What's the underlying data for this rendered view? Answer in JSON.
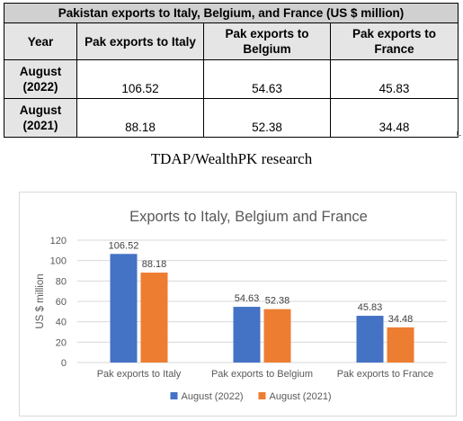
{
  "table": {
    "title": "Pakistan exports to Italy, Belgium, and France (US $ million)",
    "headers": [
      "Year",
      "Pak exports to Italy",
      "Pak exports to Belgium",
      "Pak exports to France"
    ],
    "rows": [
      {
        "year": "August (2022)",
        "italy": "106.52",
        "belgium": "54.63",
        "france": "45.83"
      },
      {
        "year": "August (2021)",
        "italy": "88.18",
        "belgium": "52.38",
        "france": "34.48"
      }
    ]
  },
  "caption": "TDAP/WealthPK research",
  "chart_data": {
    "type": "bar",
    "title": "Exports to Italy, Belgium and France",
    "ylabel": "US $ million",
    "xlabel": "",
    "categories": [
      "Pak exports to Italy",
      "Pak exports to Belgium",
      "Pak exports to France"
    ],
    "series": [
      {
        "name": "August (2022)",
        "values": [
          106.52,
          54.63,
          45.83
        ],
        "color": "#4472c4"
      },
      {
        "name": "August (2021)",
        "values": [
          88.18,
          52.38,
          34.48
        ],
        "color": "#ed7d31"
      }
    ],
    "ylim": [
      0,
      120
    ],
    "yticks": [
      0,
      20,
      40,
      60,
      80,
      100,
      120
    ],
    "grid": true,
    "legend_position": "bottom",
    "data_labels": true
  },
  "colors": {
    "title_text": "#595959",
    "axis_text": "#595959",
    "gridline": "#d9d9d9"
  }
}
